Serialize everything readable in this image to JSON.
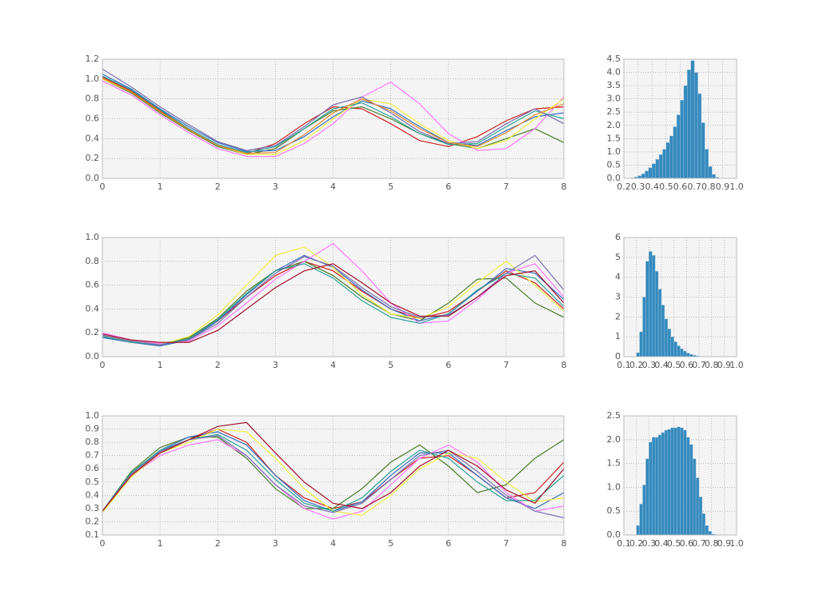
{
  "chart_data": [
    {
      "type": "line",
      "xlim": [
        0,
        8
      ],
      "xticks": [
        0,
        1,
        2,
        3,
        4,
        5,
        6,
        7,
        8
      ],
      "ylim": [
        0,
        1.2
      ],
      "yticks": [
        {
          "value": 0,
          "label": "0.0"
        },
        0.2,
        0.4,
        0.6,
        0.8,
        {
          "value": 1,
          "label": "1.0"
        },
        1.2
      ],
      "grid": true,
      "x": [
        0,
        0.5,
        1,
        1.5,
        2,
        2.5,
        3,
        3.5,
        4,
        4.5,
        5,
        5.5,
        6,
        6.5,
        7,
        7.5,
        8
      ],
      "series": [
        {
          "color": "#cc2222",
          "values": [
            1.02,
            0.88,
            0.68,
            0.5,
            0.33,
            0.25,
            0.35,
            0.55,
            0.72,
            0.7,
            0.55,
            0.38,
            0.32,
            0.42,
            0.58,
            0.7,
            0.72
          ]
        },
        {
          "color": "#4a7d2a",
          "values": [
            1.0,
            0.86,
            0.66,
            0.48,
            0.32,
            0.24,
            0.3,
            0.5,
            0.68,
            0.72,
            0.6,
            0.45,
            0.35,
            0.3,
            0.4,
            0.5,
            0.36
          ]
        },
        {
          "color": "#3a6fc0",
          "values": [
            1.05,
            0.9,
            0.7,
            0.52,
            0.36,
            0.27,
            0.28,
            0.42,
            0.62,
            0.78,
            0.7,
            0.52,
            0.36,
            0.33,
            0.48,
            0.62,
            0.66
          ]
        },
        {
          "color": "#ff77ff",
          "values": [
            0.98,
            0.84,
            0.64,
            0.46,
            0.3,
            0.22,
            0.22,
            0.35,
            0.55,
            0.82,
            0.97,
            0.75,
            0.45,
            0.28,
            0.3,
            0.5,
            0.82
          ]
        },
        {
          "color": "#f0f040",
          "values": [
            1.0,
            0.87,
            0.67,
            0.49,
            0.33,
            0.24,
            0.24,
            0.38,
            0.6,
            0.8,
            0.75,
            0.55,
            0.38,
            0.3,
            0.38,
            0.6,
            0.8
          ]
        },
        {
          "color": "#2aa198",
          "values": [
            1.03,
            0.89,
            0.69,
            0.5,
            0.34,
            0.26,
            0.32,
            0.5,
            0.7,
            0.76,
            0.62,
            0.45,
            0.34,
            0.35,
            0.52,
            0.68,
            0.6
          ]
        },
        {
          "color": "#7a6fb0",
          "values": [
            1.1,
            0.92,
            0.72,
            0.54,
            0.37,
            0.28,
            0.33,
            0.52,
            0.74,
            0.82,
            0.66,
            0.47,
            0.35,
            0.37,
            0.55,
            0.7,
            0.55
          ]
        },
        {
          "color": "#e88a2a",
          "values": [
            1.01,
            0.87,
            0.67,
            0.49,
            0.33,
            0.25,
            0.26,
            0.44,
            0.66,
            0.8,
            0.68,
            0.5,
            0.36,
            0.32,
            0.46,
            0.64,
            0.75
          ]
        }
      ]
    },
    {
      "type": "histogram",
      "xlim": [
        0.2,
        1.0
      ],
      "xticks": [
        0.2,
        0.3,
        0.4,
        0.5,
        0.6,
        0.7,
        0.8,
        0.9,
        {
          "value": 1,
          "label": "1.0"
        }
      ],
      "ylim": [
        0,
        4.5
      ],
      "yticks": [
        {
          "value": 0,
          "label": "0.0"
        },
        0.5,
        {
          "value": 1,
          "label": "1.0"
        },
        1.5,
        {
          "value": 2,
          "label": "2.0"
        },
        2.5,
        {
          "value": 3,
          "label": "3.0"
        },
        3.5,
        {
          "value": 4,
          "label": "4.0"
        },
        4.5
      ],
      "grid": true,
      "color": "#348abd",
      "bins": [
        0.25,
        0.275,
        0.3,
        0.325,
        0.35,
        0.375,
        0.4,
        0.425,
        0.45,
        0.475,
        0.5,
        0.525,
        0.55,
        0.575,
        0.6,
        0.625,
        0.65,
        0.675,
        0.7,
        0.725,
        0.75,
        0.775,
        0.8,
        0.825,
        0.85,
        0.875,
        0.9
      ],
      "counts": [
        0.02,
        0.05,
        0.1,
        0.17,
        0.28,
        0.4,
        0.55,
        0.72,
        0.9,
        1.1,
        1.35,
        1.6,
        1.95,
        2.4,
        2.95,
        3.5,
        4.1,
        4.45,
        4.0,
        3.2,
        2.1,
        1.1,
        0.45,
        0.15,
        0.04,
        0.01
      ]
    },
    {
      "type": "line",
      "xlim": [
        0,
        8
      ],
      "xticks": [
        0,
        1,
        2,
        3,
        4,
        5,
        6,
        7,
        8
      ],
      "ylim": [
        0,
        1
      ],
      "yticks": [
        {
          "value": 0,
          "label": "0.0"
        },
        0.2,
        0.4,
        0.6,
        0.8,
        {
          "value": 1,
          "label": "1.0"
        }
      ],
      "grid": true,
      "x": [
        0,
        0.5,
        1,
        1.5,
        2,
        2.5,
        3,
        3.5,
        4,
        4.5,
        5,
        5.5,
        6,
        6.5,
        7,
        7.5,
        8
      ],
      "series": [
        {
          "color": "#cc2222",
          "values": [
            0.18,
            0.13,
            0.1,
            0.15,
            0.3,
            0.5,
            0.68,
            0.8,
            0.72,
            0.55,
            0.4,
            0.32,
            0.38,
            0.55,
            0.72,
            0.62,
            0.4
          ]
        },
        {
          "color": "#4a7d2a",
          "values": [
            0.17,
            0.12,
            0.1,
            0.16,
            0.32,
            0.55,
            0.72,
            0.8,
            0.68,
            0.5,
            0.36,
            0.3,
            0.45,
            0.65,
            0.66,
            0.45,
            0.33
          ]
        },
        {
          "color": "#3a6fc0",
          "values": [
            0.16,
            0.12,
            0.09,
            0.14,
            0.3,
            0.52,
            0.72,
            0.85,
            0.75,
            0.56,
            0.4,
            0.3,
            0.36,
            0.55,
            0.74,
            0.7,
            0.48
          ]
        },
        {
          "color": "#ff77ff",
          "values": [
            0.2,
            0.14,
            0.11,
            0.13,
            0.26,
            0.45,
            0.65,
            0.8,
            0.95,
            0.72,
            0.45,
            0.28,
            0.3,
            0.48,
            0.7,
            0.78,
            0.5
          ]
        },
        {
          "color": "#f0f040",
          "values": [
            0.18,
            0.13,
            0.1,
            0.17,
            0.35,
            0.6,
            0.85,
            0.92,
            0.75,
            0.52,
            0.36,
            0.32,
            0.42,
            0.62,
            0.8,
            0.6,
            0.38
          ]
        },
        {
          "color": "#2aa198",
          "values": [
            0.17,
            0.12,
            0.1,
            0.15,
            0.31,
            0.53,
            0.72,
            0.78,
            0.66,
            0.47,
            0.33,
            0.28,
            0.36,
            0.56,
            0.7,
            0.66,
            0.42
          ]
        },
        {
          "color": "#7a6fb0",
          "values": [
            0.18,
            0.13,
            0.1,
            0.14,
            0.28,
            0.5,
            0.7,
            0.84,
            0.76,
            0.58,
            0.42,
            0.33,
            0.35,
            0.5,
            0.7,
            0.85,
            0.56
          ]
        },
        {
          "color": "#a0102a",
          "values": [
            0.19,
            0.14,
            0.12,
            0.12,
            0.22,
            0.4,
            0.58,
            0.72,
            0.78,
            0.62,
            0.45,
            0.34,
            0.34,
            0.5,
            0.68,
            0.72,
            0.45
          ]
        }
      ]
    },
    {
      "type": "histogram",
      "xlim": [
        0.1,
        1.0
      ],
      "xticks": [
        0.1,
        0.2,
        0.3,
        0.4,
        0.5,
        0.6,
        0.7,
        0.8,
        0.9,
        {
          "value": 1,
          "label": "1.0"
        }
      ],
      "ylim": [
        0,
        6
      ],
      "yticks": [
        0,
        1,
        2,
        3,
        4,
        5,
        6
      ],
      "grid": true,
      "color": "#348abd",
      "bins": [
        0.2,
        0.225,
        0.25,
        0.275,
        0.3,
        0.325,
        0.35,
        0.375,
        0.4,
        0.425,
        0.45,
        0.475,
        0.5,
        0.525,
        0.55,
        0.575,
        0.6,
        0.625,
        0.65,
        0.675,
        0.7,
        0.725,
        0.75,
        0.775,
        0.8
      ],
      "counts": [
        0.2,
        1.25,
        3.0,
        4.8,
        5.3,
        5.1,
        4.3,
        3.4,
        2.6,
        1.9,
        1.4,
        1.0,
        0.75,
        0.55,
        0.4,
        0.28,
        0.18,
        0.12,
        0.07,
        0.04,
        0.02,
        0.01,
        0.005,
        0.002
      ]
    },
    {
      "type": "line",
      "xlim": [
        0,
        8
      ],
      "xticks": [
        0,
        1,
        2,
        3,
        4,
        5,
        6,
        7,
        8
      ],
      "ylim": [
        0.1,
        1.0
      ],
      "yticks": [
        0.1,
        0.2,
        0.3,
        0.4,
        0.5,
        0.6,
        0.7,
        0.8,
        0.9,
        {
          "value": 1,
          "label": "1.0"
        }
      ],
      "grid": true,
      "x": [
        0,
        0.5,
        1,
        1.5,
        2,
        2.5,
        3,
        3.5,
        4,
        4.5,
        5,
        5.5,
        6,
        6.5,
        7,
        7.5,
        8
      ],
      "series": [
        {
          "color": "#cc2222",
          "values": [
            0.28,
            0.55,
            0.72,
            0.82,
            0.9,
            0.8,
            0.55,
            0.38,
            0.3,
            0.35,
            0.52,
            0.68,
            0.7,
            0.55,
            0.38,
            0.42,
            0.65
          ]
        },
        {
          "color": "#4a7d2a",
          "values": [
            0.28,
            0.58,
            0.76,
            0.84,
            0.84,
            0.68,
            0.45,
            0.3,
            0.3,
            0.45,
            0.65,
            0.78,
            0.62,
            0.42,
            0.48,
            0.68,
            0.82
          ]
        },
        {
          "color": "#3a6fc0",
          "values": [
            0.27,
            0.56,
            0.74,
            0.84,
            0.88,
            0.78,
            0.55,
            0.36,
            0.28,
            0.35,
            0.55,
            0.72,
            0.72,
            0.55,
            0.38,
            0.3,
            0.42
          ]
        },
        {
          "color": "#ff77ff",
          "values": [
            0.28,
            0.55,
            0.7,
            0.78,
            0.82,
            0.7,
            0.48,
            0.3,
            0.22,
            0.28,
            0.48,
            0.68,
            0.78,
            0.65,
            0.42,
            0.28,
            0.32
          ]
        },
        {
          "color": "#f0f040",
          "values": [
            0.27,
            0.54,
            0.72,
            0.8,
            0.9,
            0.88,
            0.68,
            0.45,
            0.28,
            0.25,
            0.4,
            0.6,
            0.72,
            0.68,
            0.5,
            0.35,
            0.38
          ]
        },
        {
          "color": "#2aa198",
          "values": [
            0.28,
            0.57,
            0.74,
            0.82,
            0.86,
            0.74,
            0.52,
            0.34,
            0.28,
            0.38,
            0.58,
            0.74,
            0.68,
            0.5,
            0.36,
            0.36,
            0.55
          ]
        },
        {
          "color": "#7a6fb0",
          "values": [
            0.28,
            0.56,
            0.73,
            0.82,
            0.85,
            0.7,
            0.48,
            0.32,
            0.27,
            0.34,
            0.52,
            0.7,
            0.74,
            0.58,
            0.4,
            0.28,
            0.23
          ]
        },
        {
          "color": "#a0102a",
          "values": [
            0.28,
            0.55,
            0.72,
            0.82,
            0.92,
            0.95,
            0.72,
            0.5,
            0.34,
            0.3,
            0.42,
            0.62,
            0.74,
            0.62,
            0.44,
            0.34,
            0.6
          ]
        }
      ]
    },
    {
      "type": "histogram",
      "xlim": [
        0.1,
        1.0
      ],
      "xticks": [
        0.1,
        0.2,
        0.3,
        0.4,
        0.5,
        0.6,
        0.7,
        0.8,
        0.9,
        {
          "value": 1,
          "label": "1.0"
        }
      ],
      "ylim": [
        0,
        2.5
      ],
      "yticks": [
        {
          "value": 0,
          "label": "0.0"
        },
        0.5,
        {
          "value": 1,
          "label": "1.0"
        },
        1.5,
        {
          "value": 2,
          "label": "2.0"
        },
        2.5
      ],
      "grid": true,
      "color": "#348abd",
      "bins": [
        0.2,
        0.225,
        0.25,
        0.275,
        0.3,
        0.325,
        0.35,
        0.375,
        0.4,
        0.425,
        0.45,
        0.475,
        0.5,
        0.525,
        0.55,
        0.575,
        0.6,
        0.625,
        0.65,
        0.675,
        0.7,
        0.725,
        0.75,
        0.775,
        0.8,
        0.825,
        0.85
      ],
      "counts": [
        0.2,
        0.65,
        1.05,
        1.6,
        1.95,
        2.05,
        2.05,
        2.1,
        2.15,
        2.2,
        2.22,
        2.25,
        2.25,
        2.27,
        2.25,
        2.2,
        2.05,
        1.9,
        1.6,
        1.2,
        0.8,
        0.45,
        0.2,
        0.08,
        0.02,
        0.01
      ]
    }
  ]
}
